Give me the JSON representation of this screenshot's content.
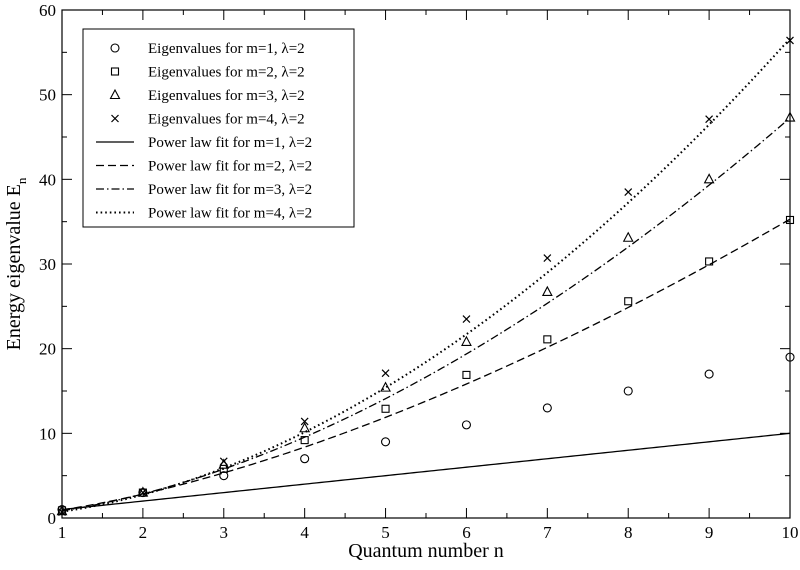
{
  "chart_data": {
    "type": "scatter",
    "title": "",
    "xlabel": "Quantum number n",
    "ylabel": "Energy eigenvalue E",
    "ylabel_subscript": "n",
    "xlim": [
      1,
      10
    ],
    "ylim": [
      0,
      60
    ],
    "xticks": [
      1,
      2,
      3,
      4,
      5,
      6,
      7,
      8,
      9,
      10
    ],
    "yticks": [
      0,
      10,
      20,
      30,
      40,
      50,
      60
    ],
    "grid": false,
    "legend_position": "top-left",
    "series": [
      {
        "name": "Eigenvalues for m=1, λ=2",
        "kind": "markers",
        "marker": "circle",
        "x": [
          1,
          2,
          3,
          4,
          5,
          6,
          7,
          8,
          9,
          10
        ],
        "y": [
          1,
          3,
          5,
          7,
          9,
          11,
          13,
          15,
          17,
          19
        ]
      },
      {
        "name": "Eigenvalues for m=2, λ=2",
        "kind": "markers",
        "marker": "square",
        "x": [
          1,
          2,
          3,
          4,
          5,
          6,
          7,
          8,
          9,
          10
        ],
        "y": [
          0.9,
          3.0,
          5.8,
          9.2,
          12.9,
          16.9,
          21.1,
          25.6,
          30.3,
          35.2
        ]
      },
      {
        "name": "Eigenvalues for m=3, λ=2",
        "kind": "markers",
        "marker": "triangle",
        "x": [
          1,
          2,
          3,
          4,
          5,
          6,
          7,
          8,
          9,
          10
        ],
        "y": [
          0.8,
          3.0,
          6.3,
          10.6,
          15.4,
          20.8,
          26.7,
          33.1,
          40.0,
          47.3
        ]
      },
      {
        "name": "Eigenvalues for m=4, λ=2",
        "kind": "markers",
        "marker": "cross",
        "x": [
          1,
          2,
          3,
          4,
          5,
          6,
          7,
          8,
          9,
          10
        ],
        "y": [
          0.7,
          3.0,
          6.7,
          11.4,
          17.1,
          23.5,
          30.7,
          38.5,
          47.1,
          56.4
        ]
      },
      {
        "name": "Power law fit for m=1, λ=2",
        "kind": "line",
        "dash": "solid",
        "coef": 1.0,
        "exponent": 1.0,
        "offset": 0
      },
      {
        "name": "Power law fit for m=2, λ=2",
        "kind": "line",
        "dash": "dashed",
        "coef": 0.95,
        "exponent": 1.57,
        "offset": 0
      },
      {
        "name": "Power law fit for m=3, λ=2",
        "kind": "line",
        "dash": "dashdot",
        "coef": 0.85,
        "exponent": 1.745,
        "offset": 0
      },
      {
        "name": "Power law fit for m=4, λ=2",
        "kind": "line",
        "dash": "dotted",
        "coef": 0.75,
        "exponent": 1.878,
        "offset": 0
      }
    ]
  }
}
